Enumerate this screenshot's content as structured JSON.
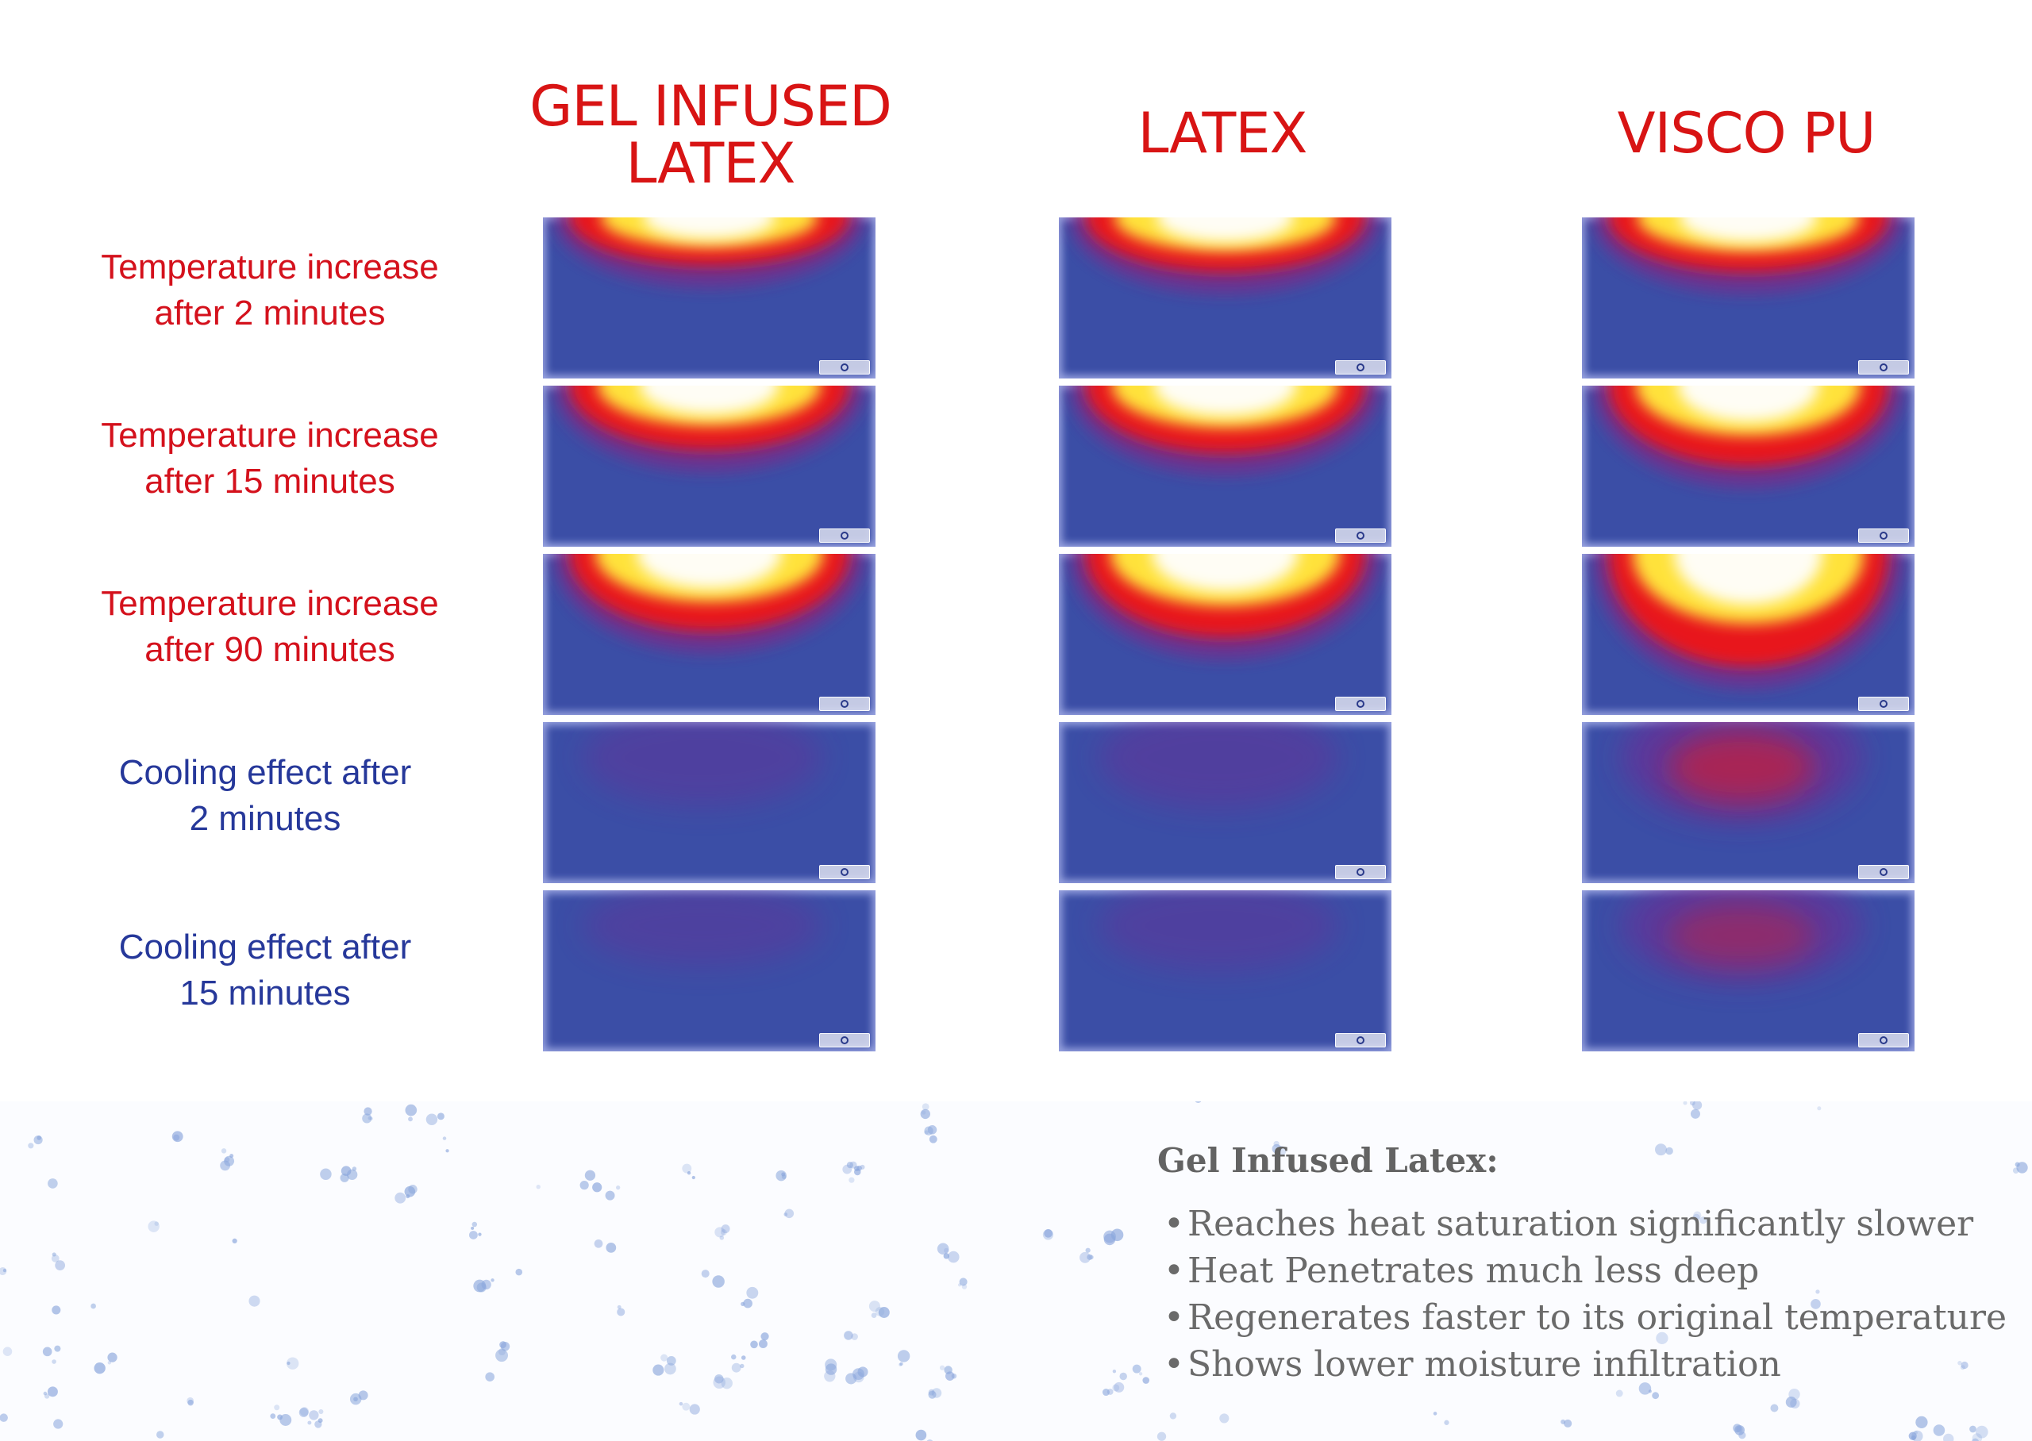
{
  "columns": [
    {
      "id": "gel",
      "title_lines": [
        "GEL INFUSED",
        "LATEX"
      ]
    },
    {
      "id": "latex",
      "title_lines": [
        "LATEX"
      ]
    },
    {
      "id": "visco",
      "title_lines": [
        "VISCO PU"
      ]
    }
  ],
  "rows": [
    {
      "id": "heat-2",
      "type": "heat",
      "label_lines": [
        "Temperature increase",
        "after 2 minutes"
      ]
    },
    {
      "id": "heat-15",
      "type": "heat",
      "label_lines": [
        "Temperature increase",
        "after 15 minutes"
      ]
    },
    {
      "id": "heat-90",
      "type": "heat",
      "label_lines": [
        "Temperature increase",
        "after 90 minutes"
      ]
    },
    {
      "id": "cool-2",
      "type": "cool",
      "label_lines": [
        "Cooling effect after",
        "2 minutes"
      ]
    },
    {
      "id": "cool-15",
      "type": "cool",
      "label_lines": [
        "Cooling effect after",
        "15 minutes"
      ]
    }
  ],
  "thermal_maps": {
    "heat-2": {
      "gel": {
        "level": 0.55,
        "depth": 0.3
      },
      "latex": {
        "level": 0.7,
        "depth": 0.34
      },
      "visco": {
        "level": 0.72,
        "depth": 0.34
      }
    },
    "heat-15": {
      "gel": {
        "level": 0.75,
        "depth": 0.4
      },
      "latex": {
        "level": 0.85,
        "depth": 0.42
      },
      "visco": {
        "level": 0.8,
        "depth": 0.5
      }
    },
    "heat-90": {
      "gel": {
        "level": 0.9,
        "depth": 0.48
      },
      "latex": {
        "level": 0.95,
        "depth": 0.52
      },
      "visco": {
        "level": 1.0,
        "depth": 0.7
      }
    },
    "cool-2": {
      "gel": {
        "level": 0.15,
        "depth": 0.3
      },
      "latex": {
        "level": 0.25,
        "depth": 0.32
      },
      "visco": {
        "level": 0.8,
        "depth": 0.4
      }
    },
    "cool-15": {
      "gel": {
        "level": 0.1,
        "depth": 0.25
      },
      "latex": {
        "level": 0.15,
        "depth": 0.28
      },
      "visco": {
        "level": 0.65,
        "depth": 0.35
      }
    }
  },
  "colors": {
    "heading_red": "#d81414",
    "cool_label_blue": "#26389a",
    "panel_blue": "#3b4ea6",
    "heat_red": "#e8141e",
    "heat_yellow": "#ffe23a",
    "heat_white": "#ffffff",
    "speckle": "#8aa6dc"
  },
  "notes": {
    "title": "Gel Infused Latex:",
    "items": [
      "Reaches heat saturation significantly slower",
      "Heat Penetrates much less deep",
      "Regenerates faster to its original temperature",
      "Shows lower moisture infiltration"
    ]
  }
}
